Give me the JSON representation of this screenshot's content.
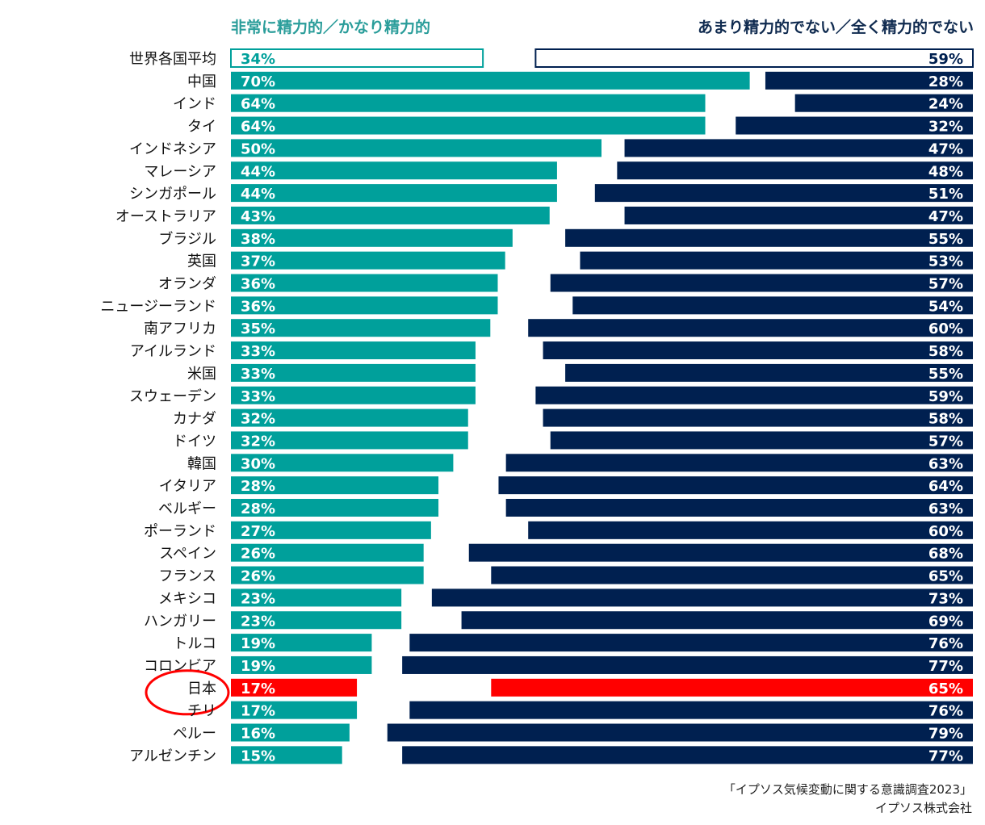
{
  "chart_data": {
    "type": "bar",
    "series": [
      {
        "name": "非常に精力的／かなり精力的",
        "color": "#00a09b"
      },
      {
        "name": "あまり精力的でない／全く精力的でない",
        "color": "#002050"
      }
    ],
    "highlight": {
      "category": "日本",
      "color": "#ff0000"
    },
    "rows": [
      {
        "label": "世界各国平均",
        "left": 34,
        "right": 59,
        "style": "outline"
      },
      {
        "label": "中国",
        "left": 70,
        "right": 28
      },
      {
        "label": "インド",
        "left": 64,
        "right": 24
      },
      {
        "label": "タイ",
        "left": 64,
        "right": 32
      },
      {
        "label": "インドネシア",
        "left": 50,
        "right": 47
      },
      {
        "label": "マレーシア",
        "left": 44,
        "right": 48
      },
      {
        "label": "シンガポール",
        "left": 44,
        "right": 51
      },
      {
        "label": "オーストラリア",
        "left": 43,
        "right": 47
      },
      {
        "label": "ブラジル",
        "left": 38,
        "right": 55
      },
      {
        "label": "英国",
        "left": 37,
        "right": 53
      },
      {
        "label": "オランダ",
        "left": 36,
        "right": 57
      },
      {
        "label": "ニュージーランド",
        "left": 36,
        "right": 54
      },
      {
        "label": "南アフリカ",
        "left": 35,
        "right": 60
      },
      {
        "label": "アイルランド",
        "left": 33,
        "right": 58
      },
      {
        "label": "米国",
        "left": 33,
        "right": 55
      },
      {
        "label": "スウェーデン",
        "left": 33,
        "right": 59
      },
      {
        "label": "カナダ",
        "left": 32,
        "right": 58
      },
      {
        "label": "ドイツ",
        "left": 32,
        "right": 57
      },
      {
        "label": "韓国",
        "left": 30,
        "right": 63
      },
      {
        "label": "イタリア",
        "left": 28,
        "right": 64
      },
      {
        "label": "ベルギー",
        "left": 28,
        "right": 63
      },
      {
        "label": "ポーランド",
        "left": 27,
        "right": 60
      },
      {
        "label": "スペイン",
        "left": 26,
        "right": 68
      },
      {
        "label": "フランス",
        "left": 26,
        "right": 65
      },
      {
        "label": "メキシコ",
        "left": 23,
        "right": 73
      },
      {
        "label": "ハンガリー",
        "left": 23,
        "right": 69
      },
      {
        "label": "トルコ",
        "left": 19,
        "right": 76
      },
      {
        "label": "コロンビア",
        "left": 19,
        "right": 77
      },
      {
        "label": "日本",
        "left": 17,
        "right": 65,
        "style": "highlight"
      },
      {
        "label": "チリ",
        "left": 17,
        "right": 76
      },
      {
        "label": "ペルー",
        "left": 16,
        "right": 79
      },
      {
        "label": "アルゼンチン",
        "left": 15,
        "right": 77
      }
    ]
  },
  "header": {
    "left": "非常に精力的／かなり精力的",
    "right": "あまり精力的でない／全く精力的でない"
  },
  "source": {
    "line1": "「イプソス気候変動に関する意識調査2023」",
    "line2": "イプソス株式会社"
  }
}
